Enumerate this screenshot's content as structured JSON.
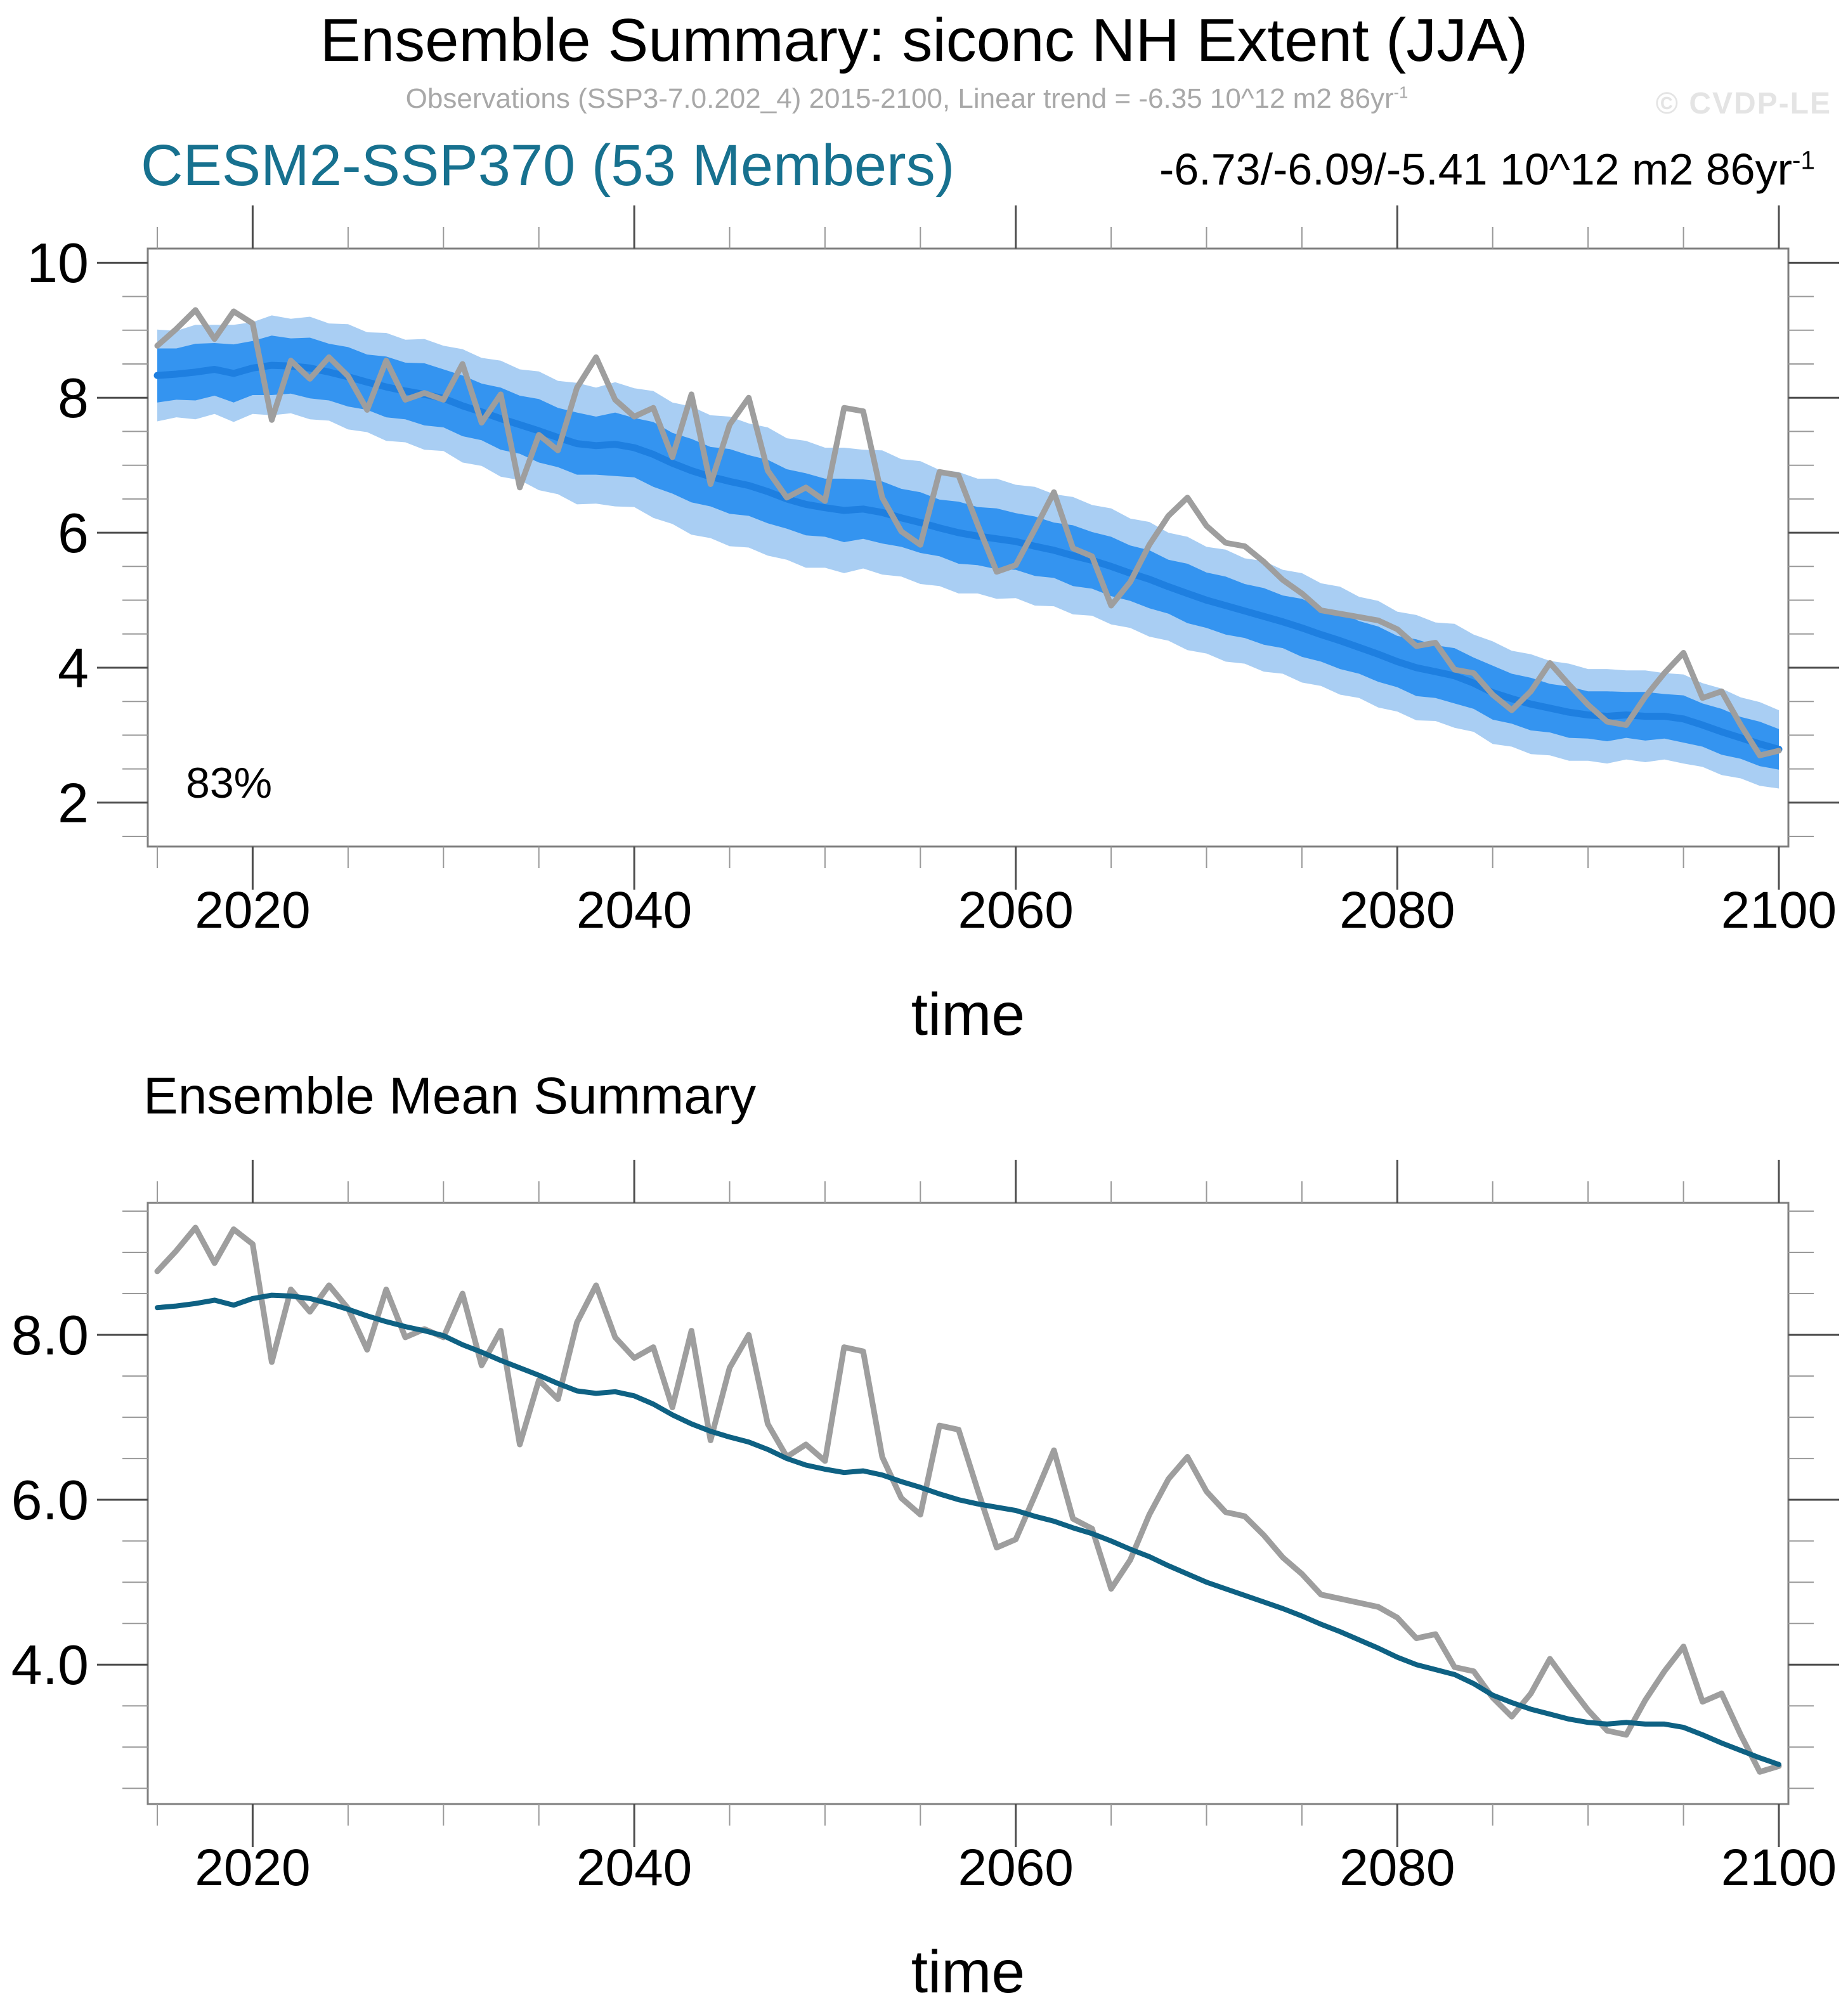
{
  "header": {
    "title": "Ensemble Summary: siconc NH Extent (JJA)",
    "subtitle_main": "Observations (SSP3-7.0.202_4) 2015-2100, Linear trend = -6.35 10^12 m2 86yr",
    "subtitle_sup": "-1",
    "watermark": "© CVDP-LE",
    "model_label": "CESM2-SSP370 (53 Members)",
    "trend_main": "-6.73/-6.09/-5.41 10^12 m2 86yr",
    "trend_sup": "-1"
  },
  "colors": {
    "outer_band": "#a9cef3",
    "inner_band": "#3494f0",
    "ensemble_mean_top": "#1e7fe0",
    "ensemble_mean_bottom": "#0e6183",
    "observations": "#9e9e9e",
    "model_label": "#17718f",
    "subtitle": "#a8a8a8",
    "watermark": "#e4e4e4",
    "frame": "#7f7f7f",
    "tick_major": "#4d4d4d",
    "tick_minor": "#9a9a9a",
    "text": "#000000"
  },
  "chart_data": [
    {
      "type": "area",
      "title": "Ensemble Summary: siconc NH Extent (JJA)",
      "xlabel": "time",
      "percent_label": "83%",
      "x": {
        "start": 2015,
        "end": 2100,
        "step": 1
      },
      "xlim": [
        2014.5,
        2100.5
      ],
      "ylim": [
        1.35,
        10.21
      ],
      "x_major_ticks": [
        2020,
        2040,
        2060,
        2080,
        2100
      ],
      "x_minor_step": 5,
      "y_major_ticks": [
        2,
        4,
        6,
        8,
        10
      ],
      "y_tick_labels": [
        "2",
        "4",
        "6",
        "8",
        "10"
      ],
      "y_minor_step": 0.5,
      "grid": false,
      "legend": "none",
      "series": [
        {
          "name": "outer_band_half_width",
          "values": [
            0.68,
            0.64,
            0.7,
            0.66,
            0.72,
            0.68,
            0.74,
            0.7,
            0.76,
            0.72,
            0.78,
            0.74,
            0.8,
            0.76,
            0.82,
            0.78,
            0.84,
            0.8,
            0.86,
            0.82,
            0.88,
            0.84,
            0.9,
            0.86,
            0.92,
            0.88,
            0.94,
            0.9,
            0.95,
            0.91,
            0.96,
            0.92,
            0.95,
            0.9,
            0.94,
            0.89,
            0.93,
            0.88,
            0.92,
            0.87,
            0.91,
            0.86,
            0.9,
            0.85,
            0.89,
            0.84,
            0.88,
            0.83,
            0.87,
            0.82,
            0.86,
            0.81,
            0.85,
            0.8,
            0.84,
            0.79,
            0.83,
            0.78,
            0.82,
            0.77,
            0.81,
            0.76,
            0.8,
            0.75,
            0.79,
            0.74,
            0.78,
            0.73,
            0.77,
            0.72,
            0.76,
            0.71,
            0.74,
            0.7,
            0.72,
            0.68,
            0.7,
            0.66,
            0.68,
            0.64,
            0.66,
            0.62,
            0.64,
            0.6,
            0.62,
            0.58
          ]
        },
        {
          "name": "inner_band_half_width",
          "values": [
            0.4,
            0.38,
            0.42,
            0.39,
            0.43,
            0.4,
            0.44,
            0.41,
            0.45,
            0.42,
            0.44,
            0.41,
            0.45,
            0.42,
            0.46,
            0.43,
            0.45,
            0.42,
            0.46,
            0.43,
            0.47,
            0.44,
            0.46,
            0.43,
            0.47,
            0.44,
            0.48,
            0.45,
            0.47,
            0.44,
            0.48,
            0.45,
            0.47,
            0.44,
            0.46,
            0.43,
            0.47,
            0.44,
            0.46,
            0.43,
            0.45,
            0.42,
            0.46,
            0.43,
            0.45,
            0.42,
            0.44,
            0.41,
            0.45,
            0.42,
            0.44,
            0.41,
            0.43,
            0.4,
            0.44,
            0.41,
            0.43,
            0.4,
            0.42,
            0.39,
            0.43,
            0.4,
            0.42,
            0.39,
            0.41,
            0.38,
            0.42,
            0.39,
            0.41,
            0.38,
            0.4,
            0.37,
            0.39,
            0.36,
            0.38,
            0.35,
            0.37,
            0.34,
            0.36,
            0.33,
            0.35,
            0.32,
            0.34,
            0.31,
            0.33,
            0.3
          ]
        },
        {
          "name": "ensemble_mean",
          "values": [
            8.33,
            8.35,
            8.38,
            8.42,
            8.36,
            8.44,
            8.48,
            8.47,
            8.44,
            8.38,
            8.31,
            8.23,
            8.16,
            8.1,
            8.05,
            7.99,
            7.88,
            7.79,
            7.69,
            7.6,
            7.51,
            7.41,
            7.32,
            7.29,
            7.31,
            7.26,
            7.16,
            7.03,
            6.92,
            6.83,
            6.76,
            6.7,
            6.61,
            6.5,
            6.42,
            6.37,
            6.33,
            6.35,
            6.3,
            6.22,
            6.15,
            6.07,
            6.0,
            5.95,
            5.91,
            5.87,
            5.8,
            5.74,
            5.66,
            5.59,
            5.5,
            5.4,
            5.31,
            5.2,
            5.1,
            5.0,
            4.92,
            4.84,
            4.76,
            4.68,
            4.59,
            4.49,
            4.4,
            4.3,
            4.2,
            4.09,
            4.0,
            3.94,
            3.88,
            3.77,
            3.63,
            3.54,
            3.46,
            3.4,
            3.34,
            3.3,
            3.28,
            3.3,
            3.28,
            3.28,
            3.24,
            3.15,
            3.05,
            2.96,
            2.87,
            2.79
          ]
        },
        {
          "name": "observations",
          "values": [
            8.77,
            9.02,
            9.3,
            8.87,
            9.28,
            9.1,
            7.67,
            8.55,
            8.28,
            8.6,
            8.32,
            7.82,
            8.55,
            7.97,
            8.07,
            7.97,
            8.5,
            7.63,
            8.05,
            6.67,
            7.45,
            7.22,
            8.15,
            8.6,
            7.97,
            7.72,
            7.85,
            7.12,
            8.05,
            6.72,
            7.6,
            8.0,
            6.92,
            6.52,
            6.67,
            6.47,
            7.85,
            7.8,
            6.52,
            6.02,
            5.82,
            6.9,
            6.85,
            6.12,
            5.42,
            5.52,
            6.05,
            6.6,
            5.77,
            5.65,
            4.92,
            5.27,
            5.82,
            6.25,
            6.52,
            6.1,
            5.85,
            5.8,
            5.57,
            5.3,
            5.1,
            4.85,
            4.8,
            4.75,
            4.7,
            4.57,
            4.32,
            4.37,
            3.97,
            3.92,
            3.6,
            3.37,
            3.65,
            4.07,
            3.75,
            3.45,
            3.2,
            3.15,
            3.57,
            3.92,
            4.22,
            3.55,
            3.65,
            3.15,
            2.7,
            2.77
          ]
        }
      ]
    },
    {
      "type": "line",
      "title": "Ensemble Mean Summary",
      "xlabel": "time",
      "x": {
        "start": 2015,
        "end": 2100,
        "step": 1
      },
      "xlim": [
        2014.5,
        2100.5
      ],
      "ylim": [
        2.31,
        9.6
      ],
      "x_major_ticks": [
        2020,
        2040,
        2060,
        2080,
        2100
      ],
      "x_minor_step": 5,
      "y_major_ticks": [
        4,
        6,
        8
      ],
      "y_tick_labels": [
        "4.0",
        "6.0",
        "8.0"
      ],
      "y_minor_step": 0.5,
      "grid": false,
      "legend": "none",
      "series": [
        {
          "name": "observations",
          "values": [
            8.77,
            9.02,
            9.3,
            8.87,
            9.28,
            9.1,
            7.67,
            8.55,
            8.28,
            8.6,
            8.32,
            7.82,
            8.55,
            7.97,
            8.07,
            7.97,
            8.5,
            7.63,
            8.05,
            6.67,
            7.45,
            7.22,
            8.15,
            8.6,
            7.97,
            7.72,
            7.85,
            7.12,
            8.05,
            6.72,
            7.6,
            8.0,
            6.92,
            6.52,
            6.67,
            6.47,
            7.85,
            7.8,
            6.52,
            6.02,
            5.82,
            6.9,
            6.85,
            6.12,
            5.42,
            5.52,
            6.05,
            6.6,
            5.77,
            5.65,
            4.92,
            5.27,
            5.82,
            6.25,
            6.52,
            6.1,
            5.85,
            5.8,
            5.57,
            5.3,
            5.1,
            4.85,
            4.8,
            4.75,
            4.7,
            4.57,
            4.32,
            4.37,
            3.97,
            3.92,
            3.6,
            3.37,
            3.65,
            4.07,
            3.75,
            3.45,
            3.2,
            3.15,
            3.57,
            3.92,
            4.22,
            3.55,
            3.65,
            3.15,
            2.7,
            2.77
          ]
        },
        {
          "name": "ensemble_mean",
          "values": [
            8.33,
            8.35,
            8.38,
            8.42,
            8.36,
            8.44,
            8.48,
            8.47,
            8.44,
            8.38,
            8.31,
            8.23,
            8.16,
            8.1,
            8.05,
            7.99,
            7.88,
            7.79,
            7.69,
            7.6,
            7.51,
            7.41,
            7.32,
            7.29,
            7.31,
            7.26,
            7.16,
            7.03,
            6.92,
            6.83,
            6.76,
            6.7,
            6.61,
            6.5,
            6.42,
            6.37,
            6.33,
            6.35,
            6.3,
            6.22,
            6.15,
            6.07,
            6.0,
            5.95,
            5.91,
            5.87,
            5.8,
            5.74,
            5.66,
            5.59,
            5.5,
            5.4,
            5.31,
            5.2,
            5.1,
            5.0,
            4.92,
            4.84,
            4.76,
            4.68,
            4.59,
            4.49,
            4.4,
            4.3,
            4.2,
            4.09,
            4.0,
            3.94,
            3.88,
            3.77,
            3.63,
            3.54,
            3.46,
            3.4,
            3.34,
            3.3,
            3.28,
            3.3,
            3.28,
            3.28,
            3.24,
            3.15,
            3.05,
            2.96,
            2.87,
            2.79
          ]
        }
      ]
    }
  ]
}
